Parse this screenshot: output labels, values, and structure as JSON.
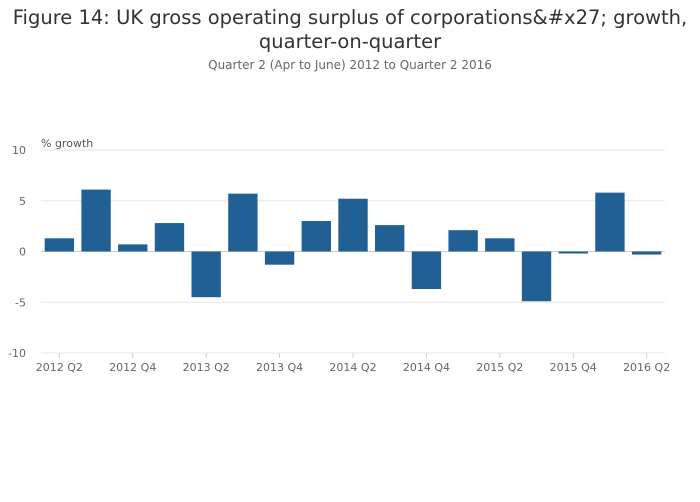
{
  "chart_data": {
    "type": "bar",
    "title_lines": [
      "Figure 14: UK gross operating surplus of corporations&#x27; growth,",
      "quarter-on-quarter"
    ],
    "subtitle": "Quarter 2 (Apr to June) 2012 to Quarter 2 2016",
    "ylabel": "% growth",
    "xlabel": "",
    "ylim": [
      -10,
      10
    ],
    "yticks": [
      10,
      5,
      0,
      -5,
      -10
    ],
    "categories": [
      "2012 Q2",
      "2012 Q3",
      "2012 Q4",
      "2013 Q1",
      "2013 Q2",
      "2013 Q3",
      "2013 Q4",
      "2014 Q1",
      "2014 Q2",
      "2014 Q3",
      "2014 Q4",
      "2015 Q1",
      "2015 Q2",
      "2015 Q3",
      "2015 Q4",
      "2016 Q1",
      "2016 Q2"
    ],
    "xtick_labels": [
      "2012 Q2",
      "2012 Q4",
      "2013 Q2",
      "2013 Q4",
      "2014 Q2",
      "2014 Q4",
      "2015 Q2",
      "2015 Q4",
      "2016 Q2"
    ],
    "values": [
      1.3,
      6.1,
      0.7,
      2.8,
      -4.5,
      5.7,
      -1.3,
      3.0,
      5.2,
      2.6,
      -3.7,
      2.1,
      1.3,
      -4.9,
      -0.2,
      5.8,
      -0.3
    ],
    "grid": true,
    "colors": {
      "bar": "#206095",
      "grid": "#e6e6e6",
      "zero_line": "#cccccc",
      "axis": "#cccccc"
    }
  }
}
